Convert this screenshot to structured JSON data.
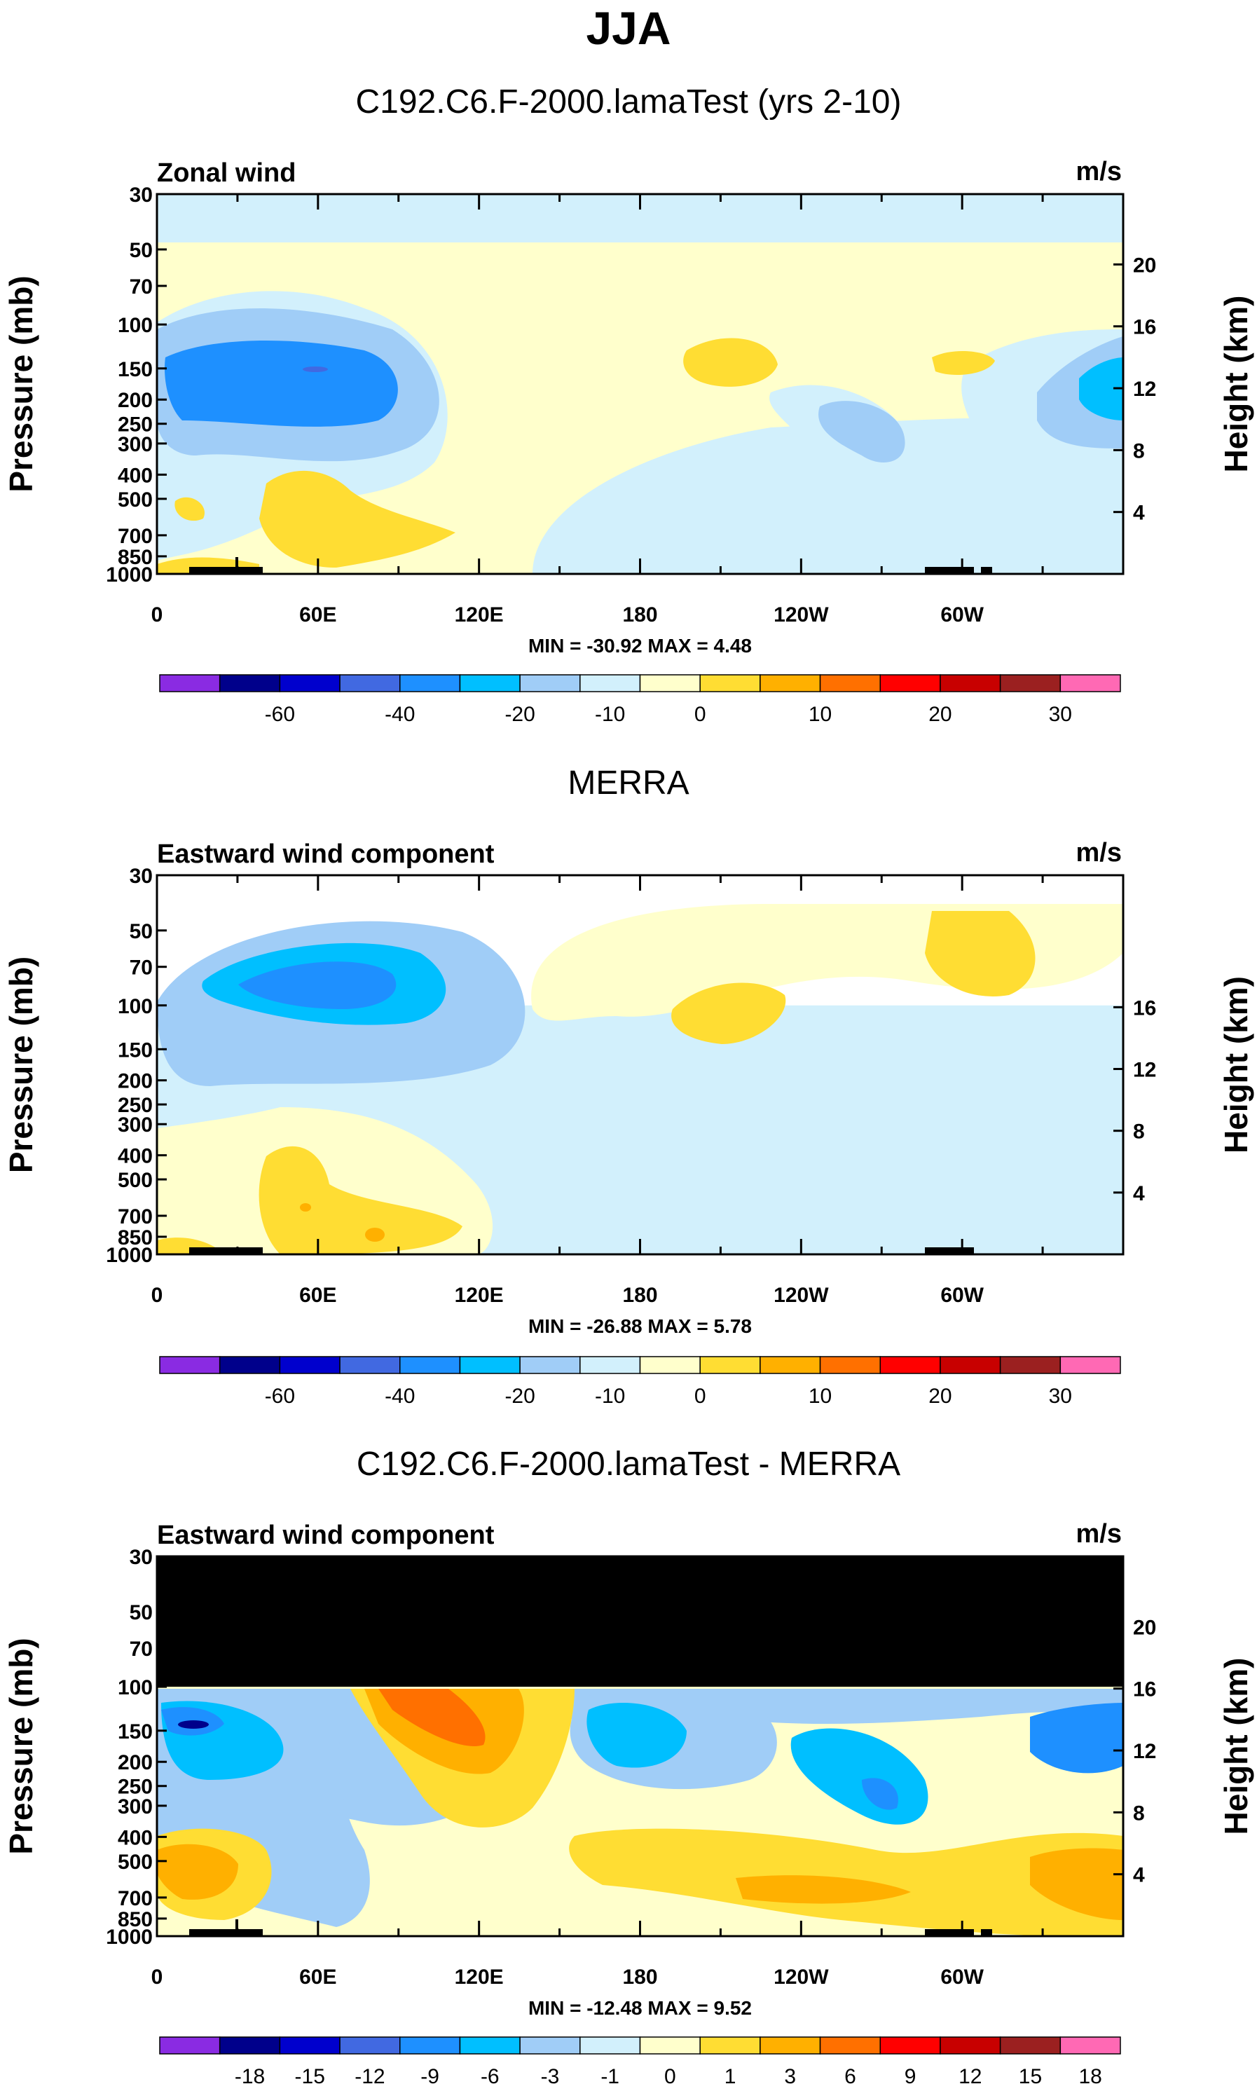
{
  "figure": {
    "title": "JJA",
    "axis_labels": {
      "left": "Pressure (mb)",
      "right": "Height (km)"
    },
    "colors": {
      "axis": "#000000",
      "palette": [
        "#8a2be2",
        "#00008b",
        "#0000cd",
        "#4169e1",
        "#1e90ff",
        "#00bfff",
        "#a0cdf7",
        "#d2f0fc",
        "#ffffcc",
        "#ffdd33",
        "#ffb000",
        "#ff7000",
        "#ff0000",
        "#c80000",
        "#9b2020",
        "#ff69b4"
      ],
      "masked": "#000000"
    }
  },
  "chart_data": [
    {
      "type": "contour",
      "panel_title": "C192.C6.F-2000.lamaTest (yrs 2-10)",
      "variable": "Zonal wind",
      "units": "m/s",
      "y_pressure_ticks": [
        "30",
        "50",
        "70",
        "100",
        "150",
        "200",
        "250",
        "300",
        "400",
        "500",
        "700",
        "850",
        "1000"
      ],
      "y_pressure_values": [
        30,
        50,
        70,
        100,
        150,
        200,
        250,
        300,
        400,
        500,
        700,
        850,
        1000
      ],
      "y_height_ticks": [
        "20",
        "16",
        "12",
        "8",
        "4"
      ],
      "y_height_values": [
        20,
        16,
        12,
        8,
        4
      ],
      "x_ticks": [
        "0",
        "60E",
        "120E",
        "180",
        "120W",
        "60W"
      ],
      "x_values": [
        0,
        60,
        120,
        180,
        240,
        300
      ],
      "xlim": [
        0,
        360
      ],
      "ylim": [
        1000,
        30
      ],
      "stats": "MIN = -30.92  MAX =   4.48",
      "colorbar_labels": [
        "-60",
        "-40",
        "-20",
        "-10",
        "0",
        "10",
        "20",
        "30"
      ],
      "data_top_mb": 30,
      "fields": [
        {
          "lon": 50,
          "p": 150,
          "value": -25
        },
        {
          "lon": 355,
          "p": 200,
          "value": -20
        },
        {
          "lon": 210,
          "p": 150,
          "value": 2
        },
        {
          "lon": 290,
          "p": 150,
          "value": 2
        },
        {
          "lon": 60,
          "p": 600,
          "value": 2
        },
        {
          "lon": 270,
          "p": 250,
          "value": -10
        }
      ]
    },
    {
      "type": "contour",
      "panel_title": "MERRA",
      "variable": "Eastward wind component",
      "units": "m/s",
      "y_pressure_ticks": [
        "30",
        "50",
        "70",
        "100",
        "150",
        "200",
        "250",
        "300",
        "400",
        "500",
        "700",
        "850",
        "1000"
      ],
      "y_pressure_values": [
        30,
        50,
        70,
        100,
        150,
        200,
        250,
        300,
        400,
        500,
        700,
        850,
        1000
      ],
      "y_height_ticks": [
        "16",
        "12",
        "8",
        "4"
      ],
      "y_height_values": [
        16,
        12,
        8,
        4
      ],
      "x_ticks": [
        "0",
        "60E",
        "120E",
        "180",
        "120W",
        "60W"
      ],
      "x_values": [
        0,
        60,
        120,
        180,
        240,
        300
      ],
      "xlim": [
        0,
        360
      ],
      "ylim": [
        1000,
        30
      ],
      "stats": "MIN = -26.88  MAX =   5.78",
      "colorbar_labels": [
        "-60",
        "-40",
        "-20",
        "-10",
        "0",
        "10",
        "20",
        "30"
      ],
      "data_top_mb": 100,
      "fields": [
        {
          "lon": 70,
          "p": 150,
          "value": -20
        },
        {
          "lon": 210,
          "p": 150,
          "value": 2
        },
        {
          "lon": 300,
          "p": 140,
          "value": 2
        },
        {
          "lon": 70,
          "p": 700,
          "value": 3
        }
      ]
    },
    {
      "type": "contour",
      "panel_title": "C192.C6.F-2000.lamaTest - MERRA",
      "variable": "Eastward wind component",
      "units": "m/s",
      "y_pressure_ticks": [
        "30",
        "50",
        "70",
        "100",
        "150",
        "200",
        "250",
        "300",
        "400",
        "500",
        "700",
        "850",
        "1000"
      ],
      "y_pressure_values": [
        30,
        50,
        70,
        100,
        150,
        200,
        250,
        300,
        400,
        500,
        700,
        850,
        1000
      ],
      "y_height_ticks": [
        "20",
        "16",
        "12",
        "8",
        "4"
      ],
      "y_height_values": [
        20,
        16,
        12,
        8,
        4
      ],
      "x_ticks": [
        "0",
        "60E",
        "120E",
        "180",
        "120W",
        "60W"
      ],
      "x_values": [
        0,
        60,
        120,
        180,
        240,
        300
      ],
      "xlim": [
        0,
        360
      ],
      "ylim": [
        1000,
        30
      ],
      "stats": "MIN = -12.48  MAX =   9.52",
      "colorbar_labels": [
        "-18",
        "-15",
        "-12",
        "-9",
        "-6",
        "-3",
        "-1",
        "0",
        "1",
        "3",
        "6",
        "9",
        "12",
        "15",
        "18"
      ],
      "masked_region": {
        "p_top": 30,
        "p_bottom": 100
      },
      "fields": [
        {
          "lon": 15,
          "p": 150,
          "value": -12
        },
        {
          "lon": 110,
          "p": 150,
          "value": 7
        },
        {
          "lon": 170,
          "p": 220,
          "value": -6
        },
        {
          "lon": 260,
          "p": 280,
          "value": -8
        },
        {
          "lon": 350,
          "p": 180,
          "value": -6
        },
        {
          "lon": 230,
          "p": 600,
          "value": 4
        },
        {
          "lon": 340,
          "p": 600,
          "value": 5
        }
      ]
    }
  ]
}
